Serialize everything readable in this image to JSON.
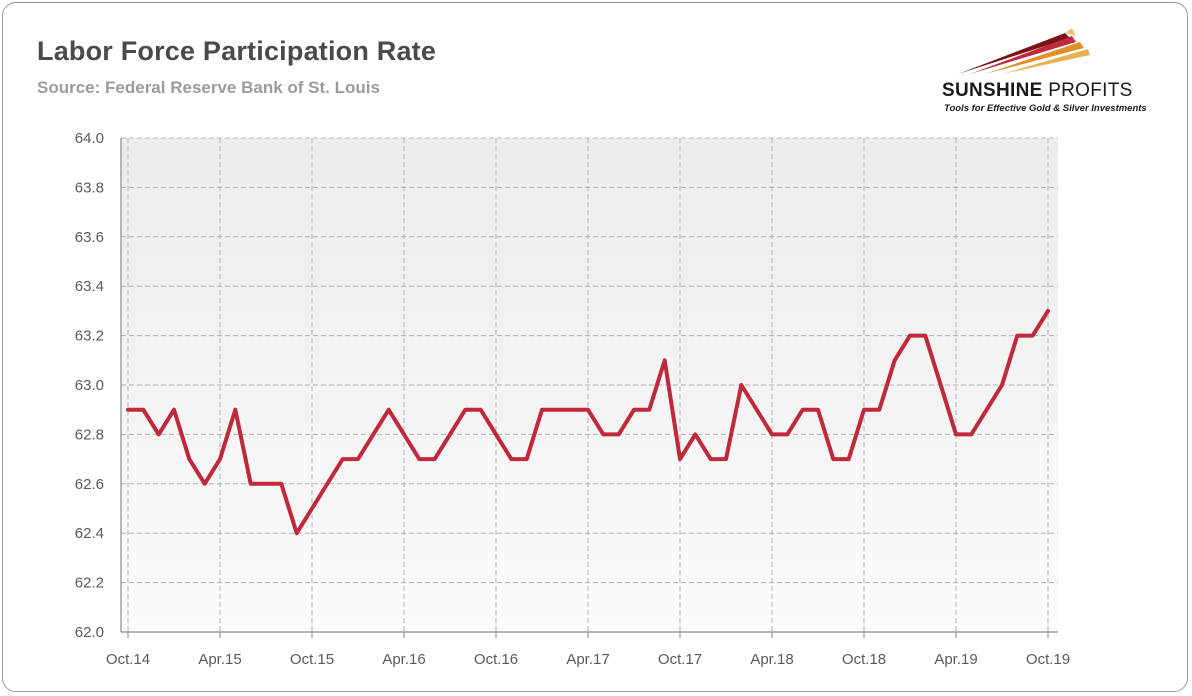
{
  "header": {
    "title": "Labor Force Participation Rate",
    "subtitle": "Source: Federal Reserve Bank of St. Louis"
  },
  "logo": {
    "name_bold": "SUNSHINE",
    "name_light": "PROFITS",
    "tagline": "Tools for Effective Gold & Silver Investments"
  },
  "colors": {
    "line": "#c0283c",
    "plot_background": "#f0f0f0",
    "grid": "#b4b4b4"
  },
  "chart_data": {
    "type": "line",
    "title": "Labor Force Participation Rate",
    "subtitle": "Source: Federal Reserve Bank of St. Louis",
    "xlabel": "",
    "ylabel": "",
    "ylim": [
      62.0,
      64.0
    ],
    "yticks": [
      "62.0",
      "62.2",
      "62.4",
      "62.6",
      "62.8",
      "63.0",
      "63.2",
      "63.4",
      "63.6",
      "63.8",
      "64.0"
    ],
    "xticks": [
      "Oct.14",
      "Apr.15",
      "Oct.15",
      "Apr.16",
      "Oct.16",
      "Apr.17",
      "Oct.17",
      "Apr.18",
      "Oct.18",
      "Apr.19",
      "Oct.19"
    ],
    "grid": true,
    "legend": "none",
    "series": [
      {
        "x": [
          "2014-10",
          "2014-11",
          "2014-12",
          "2015-01",
          "2015-02",
          "2015-03",
          "2015-04",
          "2015-05",
          "2015-06",
          "2015-07",
          "2015-08",
          "2015-09",
          "2015-10",
          "2015-11",
          "2015-12",
          "2016-01",
          "2016-02",
          "2016-03",
          "2016-04",
          "2016-05",
          "2016-06",
          "2016-07",
          "2016-08",
          "2016-09",
          "2016-10",
          "2016-11",
          "2016-12",
          "2017-01",
          "2017-02",
          "2017-03",
          "2017-04",
          "2017-05",
          "2017-06",
          "2017-07",
          "2017-08",
          "2017-09",
          "2017-10",
          "2017-11",
          "2017-12",
          "2018-01",
          "2018-02",
          "2018-03",
          "2018-04",
          "2018-05",
          "2018-06",
          "2018-07",
          "2018-08",
          "2018-09",
          "2018-10",
          "2018-11",
          "2018-12",
          "2019-01",
          "2019-02",
          "2019-03",
          "2019-04",
          "2019-05",
          "2019-06",
          "2019-07",
          "2019-08",
          "2019-09",
          "2019-10"
        ],
        "values": [
          62.9,
          62.9,
          62.8,
          62.9,
          62.7,
          62.6,
          62.7,
          62.9,
          62.6,
          62.6,
          62.6,
          62.4,
          62.5,
          62.6,
          62.7,
          62.7,
          62.8,
          62.9,
          62.8,
          62.7,
          62.7,
          62.8,
          62.9,
          62.9,
          62.8,
          62.7,
          62.7,
          62.9,
          62.9,
          62.9,
          62.9,
          62.8,
          62.8,
          62.9,
          62.9,
          63.1,
          62.7,
          62.8,
          62.7,
          62.7,
          63.0,
          62.9,
          62.8,
          62.8,
          62.9,
          62.9,
          62.7,
          62.7,
          62.9,
          62.9,
          63.1,
          63.2,
          63.2,
          63.0,
          62.8,
          62.8,
          62.9,
          63.0,
          63.2,
          63.2,
          63.3
        ]
      }
    ]
  }
}
